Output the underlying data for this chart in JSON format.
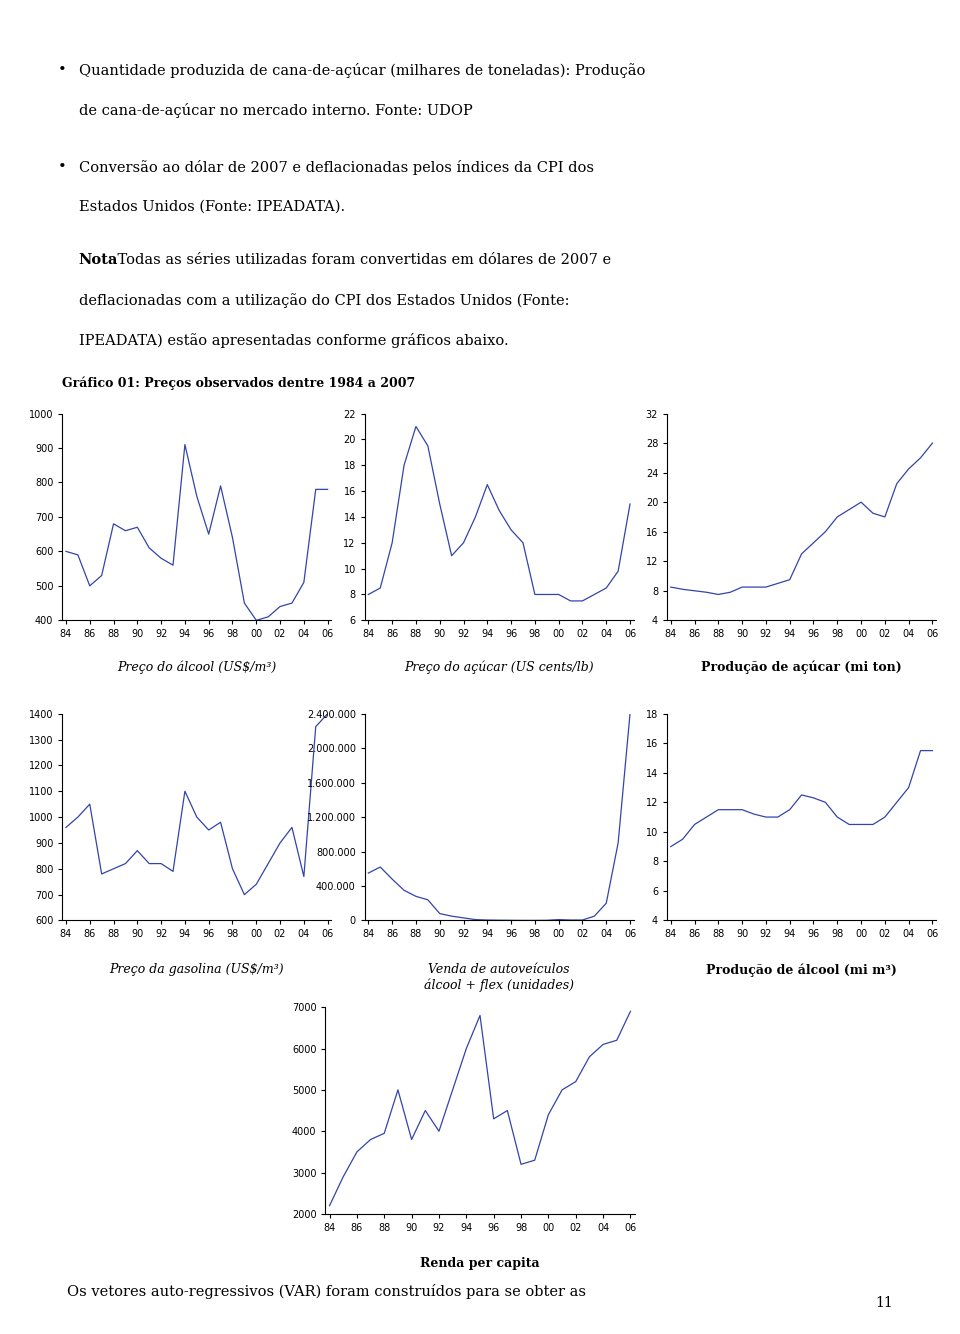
{
  "bullet1_line1": "Quantidade produzida de cana-de-açúcar (milhares de toneladas): Produção",
  "bullet1_line2": "de cana-de-açúcar no mercado interno. Fonte: UDOP",
  "bullet2_line1": "Conversão ao dólar de 2007 e deflacionadas pelos índices da CPI dos",
  "bullet2_line2": "Estados Unidos (Fonte: IPEADATA).",
  "nota_bold": "Nota",
  "nota_rest_line1": ": Todas as séries utilizadas foram convertidas em dólares de 2007 e",
  "nota_rest_line2": "deflacionadas com a utilização do CPI dos Estados Unidos (Fonte:",
  "nota_rest_line3": "IPEADATA) estão apresentadas conforme gráficos abaixo.",
  "grafico_title": "Gráfico 01: Preços observados dentre 1984 a 2007",
  "bottom_text": "Os vetores auto-regressivos (VAR) foram construídos para se obter as",
  "page_number": "11",
  "x_indices": [
    0,
    1,
    2,
    3,
    4,
    5,
    6,
    7,
    8,
    9,
    10,
    11,
    12,
    13,
    14,
    15,
    16,
    17,
    18,
    19,
    20,
    21,
    22
  ],
  "x_tick_pos": [
    0,
    2,
    4,
    6,
    8,
    10,
    12,
    14,
    16,
    18,
    20,
    22
  ],
  "x_tick_labels": [
    "84",
    "86",
    "88",
    "90",
    "92",
    "94",
    "96",
    "98",
    "00",
    "02",
    "04",
    "06"
  ],
  "alcool_price": [
    600,
    590,
    500,
    530,
    680,
    660,
    670,
    610,
    580,
    560,
    910,
    760,
    650,
    790,
    640,
    450,
    400,
    410,
    440,
    450,
    510,
    780,
    780
  ],
  "alcool_ylim": [
    400,
    1000
  ],
  "alcool_yticks": [
    400,
    500,
    600,
    700,
    800,
    900,
    1000
  ],
  "alcool_label": "Preço do álcool (US$/m³)",
  "alcool_italic": true,
  "acucar_price": [
    8.0,
    8.5,
    12.0,
    18.0,
    21.0,
    19.5,
    15.0,
    11.0,
    12.0,
    14.0,
    16.5,
    14.5,
    13.0,
    12.0,
    8.0,
    8.0,
    8.0,
    7.5,
    7.5,
    8.0,
    8.5,
    9.8,
    15.0
  ],
  "acucar_ylim": [
    6,
    22
  ],
  "acucar_yticks": [
    6,
    8,
    10,
    12,
    14,
    16,
    18,
    20,
    22
  ],
  "acucar_label": "Preço do açúcar (US cents/lb)",
  "acucar_italic": true,
  "prod_acucar": [
    8.5,
    8.2,
    8.0,
    7.8,
    7.5,
    7.8,
    8.5,
    8.5,
    8.5,
    9.0,
    9.5,
    13.0,
    14.5,
    16.0,
    18.0,
    19.0,
    20.0,
    18.5,
    18.0,
    22.5,
    24.5,
    26.0,
    28.0
  ],
  "prod_acucar_ylim": [
    4,
    32
  ],
  "prod_acucar_yticks": [
    4,
    8,
    12,
    16,
    20,
    24,
    28,
    32
  ],
  "prod_acucar_label": "Produção de açúcar (mi ton)",
  "prod_acucar_bold": true,
  "gasolina_price": [
    960,
    1000,
    1050,
    780,
    800,
    820,
    870,
    820,
    820,
    790,
    1100,
    1000,
    950,
    980,
    800,
    700,
    740,
    820,
    900,
    960,
    770,
    1350,
    1400
  ],
  "gasolina_ylim": [
    600,
    1400
  ],
  "gasolina_yticks": [
    600,
    700,
    800,
    900,
    1000,
    1100,
    1200,
    1300,
    1400
  ],
  "gasolina_label": "Preço da gasolina (US$/m³)",
  "gasolina_italic": true,
  "venda_veiculos": [
    550000,
    620000,
    480000,
    350000,
    280000,
    240000,
    80000,
    50000,
    30000,
    10000,
    5000,
    3000,
    2000,
    1000,
    1000,
    2000,
    10000,
    5000,
    5000,
    50000,
    200000,
    900000,
    2400000
  ],
  "venda_ylim": [
    0,
    2400000
  ],
  "venda_yticks": [
    0,
    400000,
    800000,
    1200000,
    1600000,
    2000000,
    2400000
  ],
  "venda_label_line1": "Venda de autoveículos",
  "venda_label_line2": "álcool + flex (unidades)",
  "venda_italic": true,
  "prod_alcool": [
    9.0,
    9.5,
    10.5,
    11.0,
    11.5,
    11.5,
    11.5,
    11.2,
    11.0,
    11.0,
    11.5,
    12.5,
    12.3,
    12.0,
    11.0,
    10.5,
    10.5,
    10.5,
    11.0,
    12.0,
    13.0,
    15.5,
    15.5
  ],
  "prod_alcool_ylim": [
    4,
    18
  ],
  "prod_alcool_yticks": [
    4,
    6,
    8,
    10,
    12,
    14,
    16,
    18
  ],
  "prod_alcool_label": "Produção de álcool (mi m³)",
  "prod_alcool_bold": true,
  "renda_pc": [
    2200,
    2900,
    3500,
    3800,
    3950,
    5000,
    3800,
    4500,
    4000,
    5000,
    6000,
    6800,
    4300,
    4500,
    3200,
    3300,
    4400,
    5000,
    5200,
    5800,
    6100,
    6200,
    6900
  ],
  "renda_ylim": [
    2000,
    7000
  ],
  "renda_yticks": [
    2000,
    3000,
    4000,
    5000,
    6000,
    7000
  ],
  "renda_label": "Renda per capita",
  "renda_bold": true,
  "line_color": "#3344aa",
  "bg_color": "#ffffff",
  "text_color": "#000000"
}
